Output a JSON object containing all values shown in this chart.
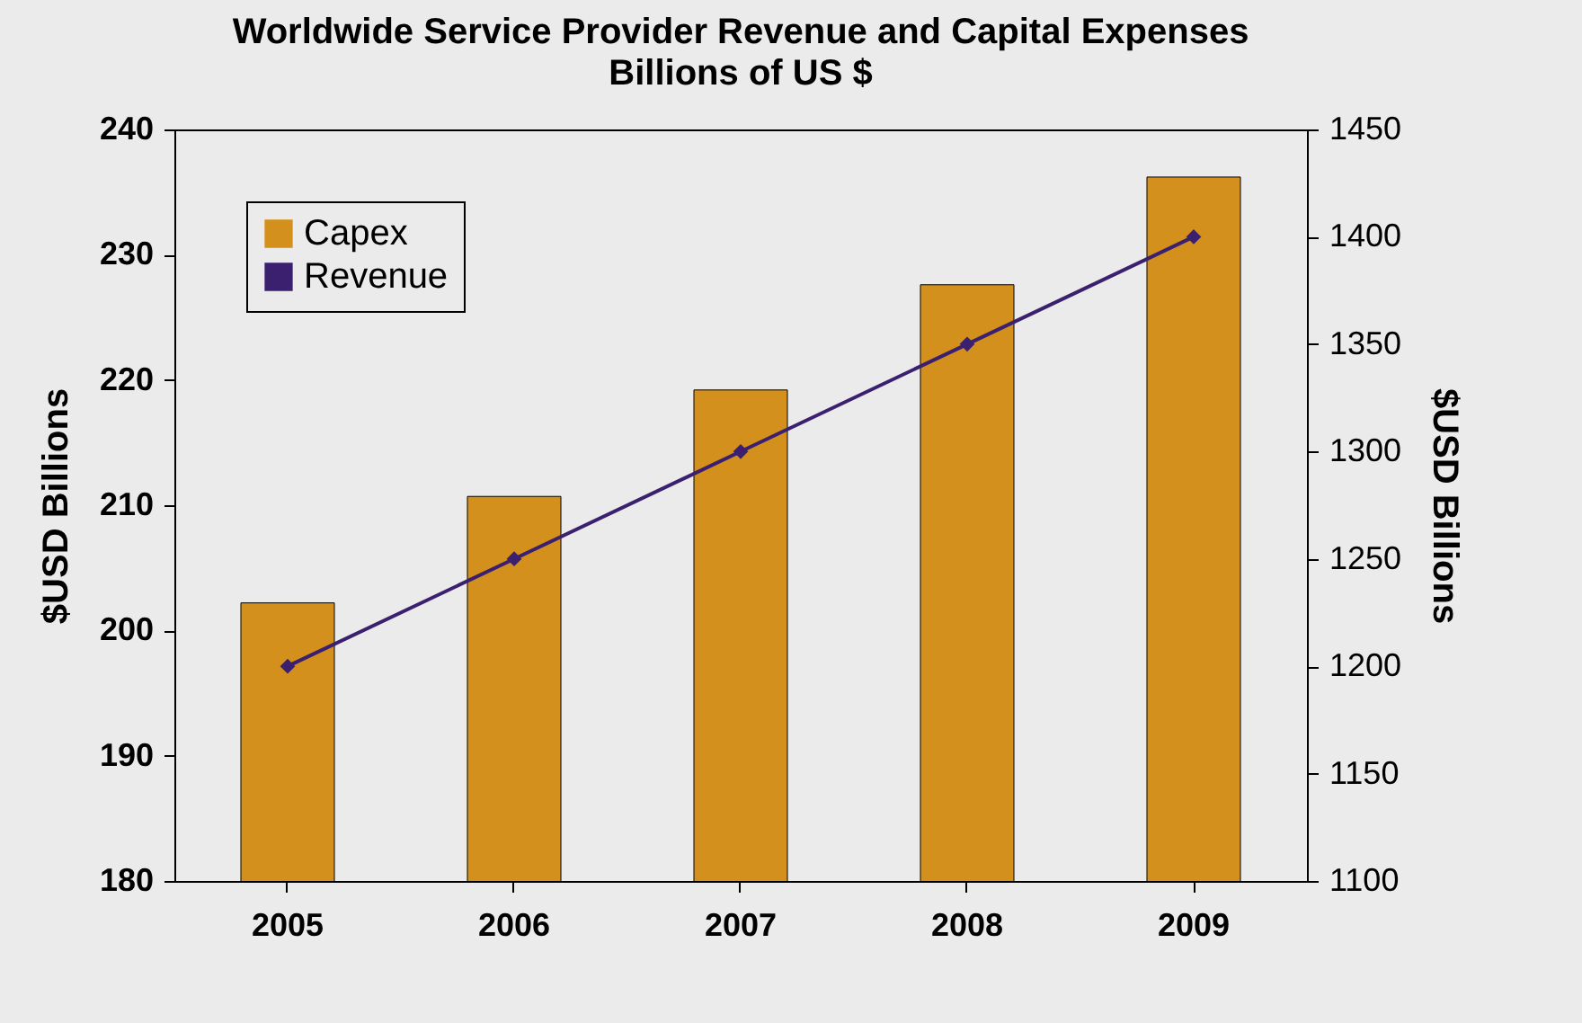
{
  "chart_data": {
    "type": "bar",
    "title": "Worldwide Service Provider Revenue and Capital Expenses",
    "subtitle": "Billions of US $",
    "categories": [
      "2005",
      "2006",
      "2007",
      "2008",
      "2009"
    ],
    "series": [
      {
        "name": "Capex",
        "color": "#d4901c",
        "values": [
          202.2,
          210.7,
          219.2,
          227.6,
          236.2
        ]
      },
      {
        "name": "Revenue",
        "type": "line",
        "axis": "y2",
        "color": "#3b2070",
        "values": [
          1200,
          1250,
          1300,
          1350,
          1400
        ]
      }
    ],
    "ylabel": "$USD Billions",
    "y2label": "$USD Billions",
    "ylim": [
      180,
      240
    ],
    "yticks": [
      180,
      190,
      200,
      210,
      220,
      230,
      240
    ],
    "y2lim": [
      1100,
      1450
    ],
    "y2ticks": [
      1100,
      1150,
      1200,
      1250,
      1300,
      1350,
      1400,
      1450
    ],
    "legend": "top left",
    "marker": "diamond"
  }
}
